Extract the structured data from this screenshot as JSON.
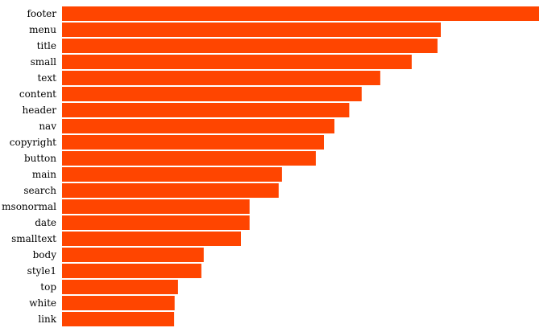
{
  "chart_data": {
    "type": "bar",
    "orientation": "horizontal",
    "title": "",
    "xlabel": "",
    "ylabel": "",
    "grid": false,
    "color": "#ff4500",
    "categories": [
      "footer",
      "menu",
      "title",
      "small",
      "text",
      "content",
      "header",
      "nav",
      "copyright",
      "button",
      "main",
      "search",
      "msonormal",
      "date",
      "smalltext",
      "body",
      "style1",
      "top",
      "white",
      "link"
    ],
    "values": [
      100,
      79.4,
      78.7,
      73.3,
      66.7,
      62.8,
      60.2,
      57.1,
      54.9,
      53.2,
      46.1,
      45.4,
      39.3,
      39.3,
      37.5,
      29.7,
      29.2,
      24.3,
      23.6,
      23.5
    ],
    "xlim": [
      0,
      100
    ]
  }
}
